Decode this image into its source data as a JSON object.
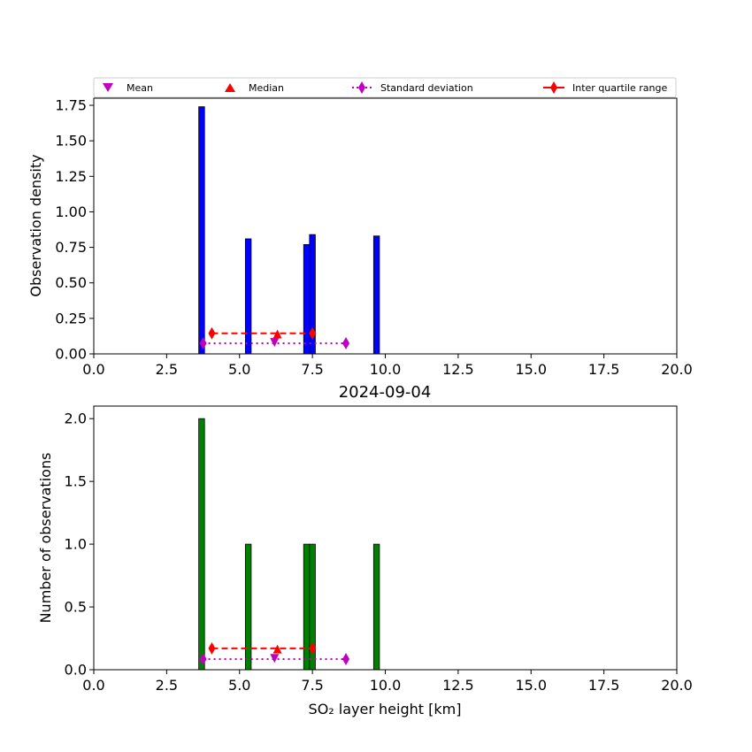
{
  "chart_data": [
    {
      "type": "bar",
      "ylabel": "Observation density",
      "xlim": [
        0,
        20
      ],
      "ylim": [
        0,
        1.8
      ],
      "xticks": [
        "0.0",
        "2.5",
        "5.0",
        "7.5",
        "10.0",
        "12.5",
        "15.0",
        "17.5",
        "20.0"
      ],
      "yticks": [
        "0.00",
        "0.25",
        "0.50",
        "0.75",
        "1.00",
        "1.25",
        "1.50",
        "1.75"
      ],
      "bar_color": "#0000ff",
      "bars": [
        {
          "x0": 3.6,
          "x1": 3.8,
          "value": 1.74
        },
        {
          "x0": 5.2,
          "x1": 5.4,
          "value": 0.81
        },
        {
          "x0": 7.2,
          "x1": 7.4,
          "value": 0.77
        },
        {
          "x0": 7.4,
          "x1": 7.6,
          "value": 0.84
        },
        {
          "x0": 9.6,
          "x1": 9.8,
          "value": 0.83
        }
      ],
      "mean": {
        "x": 6.2,
        "y": 0.08
      },
      "median": {
        "x": 6.3,
        "y": 0.14
      },
      "std_range": {
        "x": [
          3.75,
          8.65
        ],
        "y": 0.075
      },
      "iqr_range": {
        "x": [
          4.05,
          7.5
        ],
        "y": 0.145
      }
    },
    {
      "type": "bar",
      "title": "2024-09-04",
      "ylabel": "Number of observations",
      "xlabel": "SO₂ layer height [km]",
      "xlim": [
        0,
        20
      ],
      "ylim": [
        0,
        2.1
      ],
      "xticks": [
        "0.0",
        "2.5",
        "5.0",
        "7.5",
        "10.0",
        "12.5",
        "15.0",
        "17.5",
        "20.0"
      ],
      "yticks": [
        "0.0",
        "0.5",
        "1.0",
        "1.5",
        "2.0"
      ],
      "bar_color": "#008000",
      "bars": [
        {
          "x0": 3.6,
          "x1": 3.8,
          "value": 2
        },
        {
          "x0": 5.2,
          "x1": 5.4,
          "value": 1
        },
        {
          "x0": 7.2,
          "x1": 7.4,
          "value": 1
        },
        {
          "x0": 7.4,
          "x1": 7.6,
          "value": 1
        },
        {
          "x0": 9.6,
          "x1": 9.8,
          "value": 1
        }
      ],
      "mean": {
        "x": 6.2,
        "y": 0.09
      },
      "median": {
        "x": 6.3,
        "y": 0.165
      },
      "std_range": {
        "x": [
          3.75,
          8.65
        ],
        "y": 0.085
      },
      "iqr_range": {
        "x": [
          4.05,
          7.5
        ],
        "y": 0.17
      }
    }
  ],
  "legend": {
    "placement": "top",
    "mean": "Mean",
    "median": "Median",
    "std": "Standard deviation",
    "iqr": "Inter quartile range",
    "mean_color": "#bf00bf",
    "median_color": "#ff0000",
    "std_color": "#bf00bf",
    "iqr_color": "#ff0000"
  }
}
